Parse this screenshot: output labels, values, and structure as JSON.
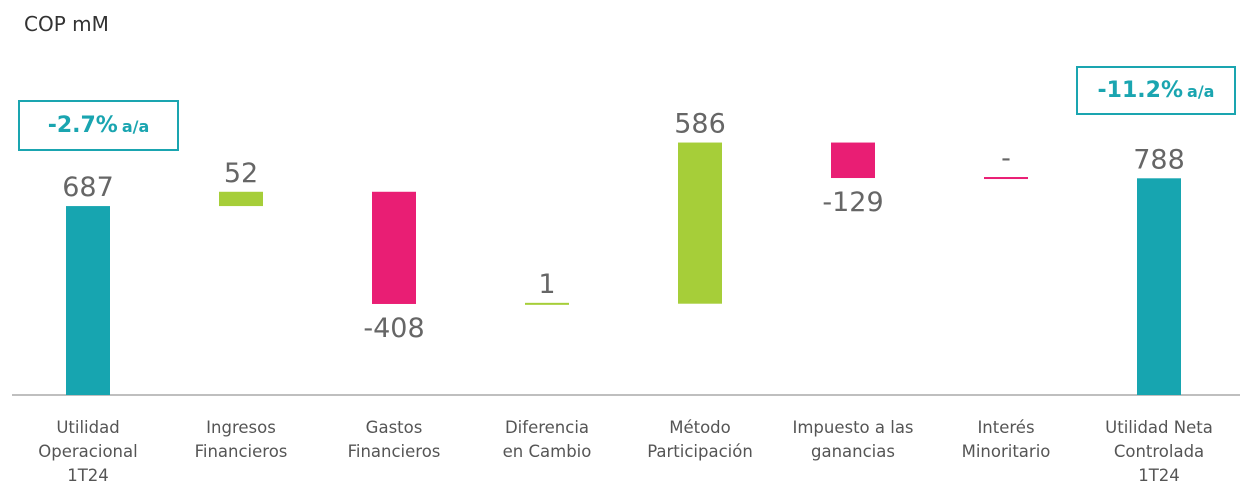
{
  "chart_data": {
    "type": "waterfall",
    "unit_label": "COP mM",
    "categories": [
      "Utilidad\nOperacional\n1T24",
      "Ingresos\nFinancieros",
      "Gastos\nFinancieros",
      "Diferencia\nen Cambio",
      "Método\nParticipación",
      "Impuesto a las\nganancias",
      "Interés\nMinoritario",
      "Utilidad Neta\nControlada\n1T24"
    ],
    "values": [
      687,
      52,
      -408,
      1,
      586,
      -129,
      0,
      788
    ],
    "value_labels": [
      "687",
      "52",
      "-408",
      "1",
      "586",
      "-129",
      "-",
      "788"
    ],
    "measure": [
      "total",
      "relative",
      "relative",
      "relative",
      "relative",
      "relative",
      "relative",
      "total"
    ],
    "colors": {
      "total": "#17a5b0",
      "increase": "#a6ce39",
      "decrease": "#e91e74"
    },
    "ylim": [
      0,
      1400
    ],
    "annotations": [
      {
        "text": "-2.7%",
        "suffix": "a/a"
      },
      {
        "text": "-11.2%",
        "suffix": "a/a"
      }
    ]
  }
}
